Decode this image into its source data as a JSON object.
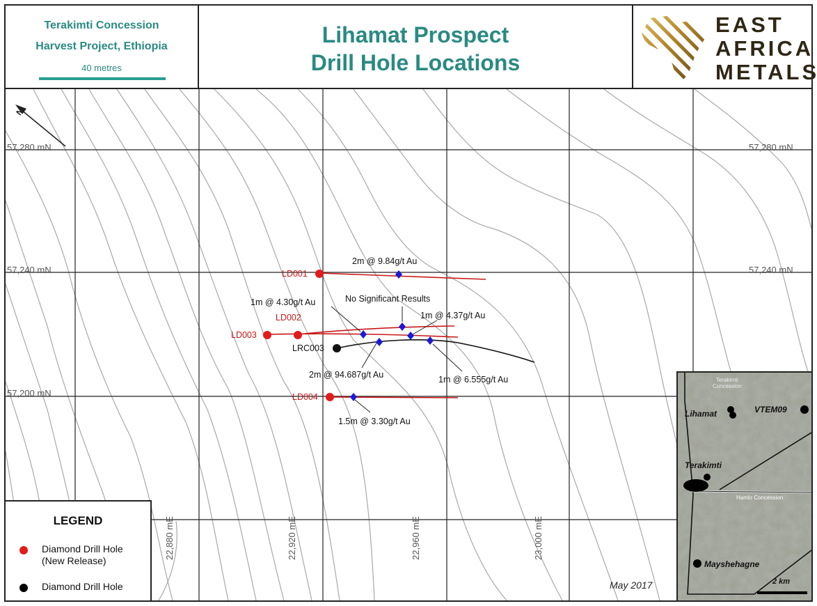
{
  "header": {
    "concession_line1": "Terakimti Concession",
    "concession_line2": "Harvest Project, Ethiopia",
    "scale_label": "40 metres",
    "title_line1": "Lihamat Prospect",
    "title_line2": "Drill Hole Locations",
    "logo_line1": "EAST",
    "logo_line2": "AFRICA",
    "logo_line3": "METALS"
  },
  "grid": {
    "northings": [
      "57,280 mN",
      "57,240 mN",
      "57,200 mN"
    ],
    "eastings": [
      "22,880 mE",
      "22,920 mE",
      "22,960 mE",
      "23,000 mE"
    ]
  },
  "drill_holes": [
    {
      "id": "LD001",
      "type": "new"
    },
    {
      "id": "LD002",
      "type": "new"
    },
    {
      "id": "LD003",
      "type": "new"
    },
    {
      "id": "LD004",
      "type": "new"
    },
    {
      "id": "LRC003",
      "type": "existing"
    }
  ],
  "intercepts": [
    "2m @ 9.84g/t Au",
    "1m @ 4.30g/t Au",
    "No Significant Results",
    "1m @ 4.37g/t Au",
    "2m @ 94.687g/t Au",
    "1m @ 6.555g/t Au",
    "1.5m @ 3.30g/t Au"
  ],
  "legend": {
    "title": "LEGEND",
    "new_label_line1": "Diamond Drill Hole",
    "new_label_line2": "(New Release)",
    "existing_label": "Diamond Drill Hole",
    "new_color": "#e11b1b",
    "existing_color": "#000000"
  },
  "inset": {
    "concession_top_line1": "Terakimti",
    "concession_top_line2": "Concession",
    "concession_bottom": "Hamlo Concession",
    "prospects": [
      "Lihamat",
      "VTEM09",
      "Terakimti",
      "Mayshehagne"
    ],
    "scale_label": "2 km"
  },
  "date": "May 2017",
  "colors": {
    "title_teal": "#2a8a82",
    "trace_red": "#c81818",
    "intercept_blue": "#1a1ad8",
    "contour_gray": "#a8a8a8",
    "logo_gold": "#c9a040"
  }
}
